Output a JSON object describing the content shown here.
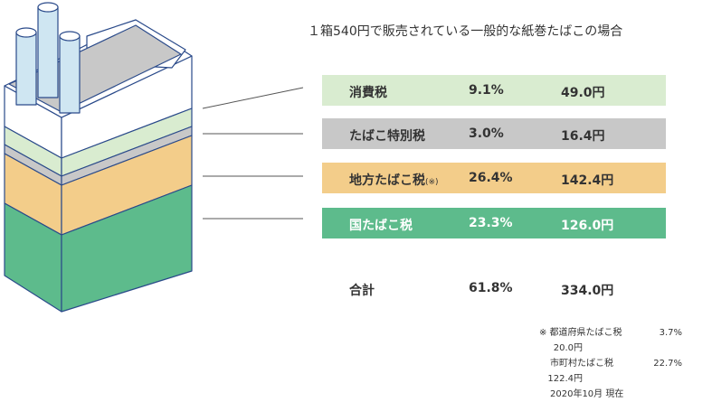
{
  "title": "１箱540円で販売されている一般的な紙巻たばこの場合",
  "rows": [
    {
      "name": "消費税",
      "rate": "9.1%",
      "amount": "49.0円"
    },
    {
      "name": "たばこ特別税",
      "rate": "3.0%",
      "amount": "16.4円"
    },
    {
      "name": "地方たばこ税",
      "note": "(※)",
      "rate": "26.4%",
      "amount": "142.4円"
    },
    {
      "name": "国たばこ税",
      "rate": "23.3%",
      "amount": "126.0円"
    }
  ],
  "total": {
    "name": "合計",
    "rate": "61.8%",
    "amount": "334.0円"
  },
  "notes": [
    {
      "name": "※ 都道府県たばこ税",
      "rate": "3.7%",
      "amount": "20.0円"
    },
    {
      "name": "市町村たばこ税",
      "rate": "22.7%",
      "amount": "122.4円"
    }
  ],
  "date": "2020年10月 現在"
}
